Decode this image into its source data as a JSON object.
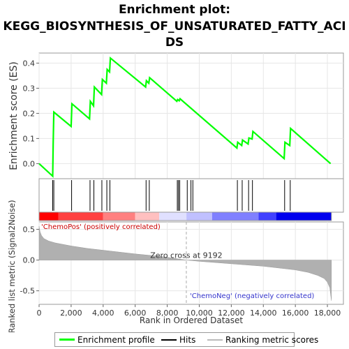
{
  "title_line1": "Enrichment plot:",
  "title_line2": "KEGG_BIOSYNTHESIS_OF_UNSATURATED_FATTY_ACI",
  "title_line3": "DS",
  "chart_data": {
    "type": "line",
    "es_panel": {
      "ylabel": "Enrichment score (ES)",
      "ylim": [
        -0.06,
        0.44
      ],
      "yticks": [
        "0.0",
        "0.1",
        "0.2",
        "0.3",
        "0.4"
      ],
      "ytick_values": [
        0.0,
        0.1,
        0.2,
        0.3,
        0.4
      ],
      "series": [
        {
          "name": "Enrichment profile",
          "color": "#00ff00",
          "x": [
            0,
            850,
            880,
            920,
            2000,
            2050,
            3150,
            3200,
            3400,
            3450,
            3900,
            3950,
            4200,
            4250,
            4400,
            4450,
            6650,
            6700,
            6850,
            6900,
            8600,
            8650,
            8750,
            8800,
            12350,
            12400,
            12650,
            12700,
            13050,
            13100,
            13300,
            13350,
            15300,
            15350,
            15650,
            15700,
            18200
          ],
          "y": [
            0.0,
            -0.05,
            0.08,
            0.205,
            0.148,
            0.238,
            0.178,
            0.248,
            0.23,
            0.305,
            0.275,
            0.335,
            0.32,
            0.375,
            0.365,
            0.42,
            0.305,
            0.33,
            0.32,
            0.342,
            0.248,
            0.255,
            0.25,
            0.258,
            0.062,
            0.085,
            0.072,
            0.094,
            0.078,
            0.102,
            0.098,
            0.128,
            0.02,
            0.085,
            0.072,
            0.14,
            0.0
          ]
        }
      ]
    },
    "hits": {
      "name": "Hits",
      "color": "#000000",
      "x": [
        850,
        920,
        2030,
        3180,
        3420,
        3920,
        4230,
        4420,
        6680,
        6880,
        8630,
        8700,
        8780,
        9250,
        9480,
        9600,
        12380,
        12680,
        13080,
        13320,
        15330,
        15680
      ]
    },
    "rank_panel": {
      "ylabel": "Ranked list metric (Signal2Noise)",
      "xlabel": "Rank in Ordered Dataset",
      "ylim": [
        -0.72,
        0.62
      ],
      "yticks": [
        "0.5",
        "0.0",
        "-0.5"
      ],
      "ytick_values": [
        0.5,
        0.0,
        -0.5
      ],
      "xlim": [
        0,
        19000
      ],
      "xticks": [
        "0",
        "2,000",
        "4,000",
        "6,000",
        "8,000",
        "10,000",
        "12,000",
        "14,000",
        "16,000",
        "18,000"
      ],
      "xtick_values": [
        0,
        2000,
        4000,
        6000,
        8000,
        10000,
        12000,
        14000,
        16000,
        18000
      ],
      "zero_cross_label": "Zero cross at 9192",
      "zero_cross": 9192,
      "pos_label": "'ChemoPos' (positively correlated)",
      "neg_label": "'ChemoNeg' (negatively correlated)",
      "metric_curve": {
        "name": "Ranking metric scores",
        "color": "#999999",
        "x": [
          0,
          60,
          150,
          300,
          600,
          1000,
          2000,
          3000,
          4000,
          5000,
          6000,
          7000,
          8000,
          9192,
          10000,
          11000,
          12000,
          13000,
          14000,
          15000,
          16000,
          16800,
          17400,
          17800,
          18000,
          18150,
          18250
        ],
        "y": [
          0.55,
          0.46,
          0.4,
          0.35,
          0.31,
          0.28,
          0.23,
          0.19,
          0.16,
          0.13,
          0.1,
          0.075,
          0.045,
          0.0,
          -0.02,
          -0.04,
          -0.06,
          -0.08,
          -0.1,
          -0.13,
          -0.16,
          -0.2,
          -0.25,
          -0.3,
          -0.36,
          -0.45,
          -0.66
        ]
      }
    },
    "color_bar": [
      "#ff0000",
      "#ff4040",
      "#ff8080",
      "#ffc0c0",
      "#e0e0ff",
      "#c0c0ff",
      "#8080ff",
      "#4040ff",
      "#0000ee"
    ],
    "legend": [
      {
        "label": "Enrichment profile",
        "color": "#00ff00"
      },
      {
        "label": "Hits",
        "color": "#000000"
      },
      {
        "label": "Ranking metric scores",
        "color": "#bbbbbb"
      }
    ]
  }
}
